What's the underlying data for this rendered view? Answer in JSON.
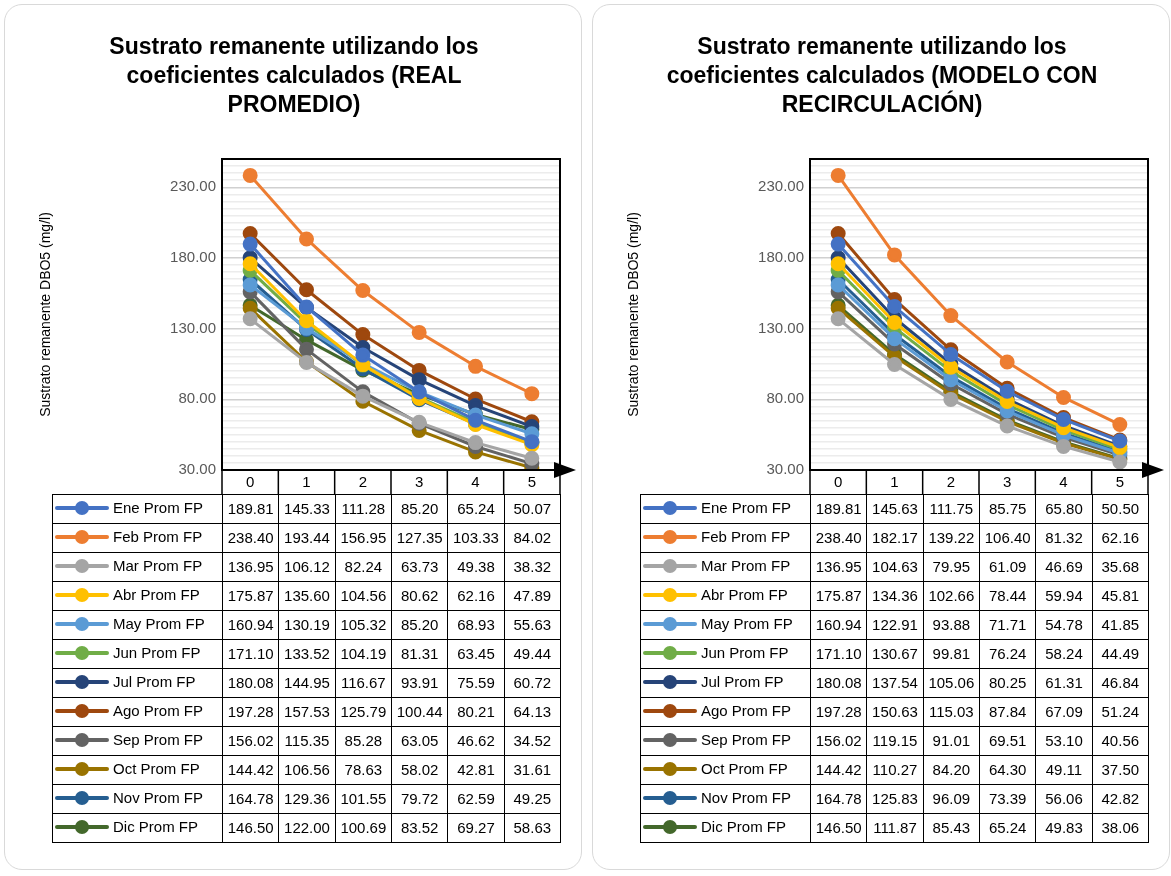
{
  "chart_data": [
    {
      "type": "line",
      "title": "Sustrato remanente utilizando los coeficientes calculados (REAL PROMEDIO)",
      "ylabel": "Sustrato remanente DBO5 (mg/l)",
      "categories": [
        "0",
        "1",
        "2",
        "3",
        "4",
        "5"
      ],
      "ylim": [
        30,
        250
      ],
      "yticks": [
        {
          "value": 30,
          "label": "30.00"
        },
        {
          "value": 35,
          "label": null
        },
        {
          "value": 40,
          "label": null
        },
        {
          "value": 45,
          "label": null
        },
        {
          "value": 50,
          "label": null
        },
        {
          "value": 55,
          "label": null
        },
        {
          "value": 60,
          "label": null
        },
        {
          "value": 65,
          "label": null
        },
        {
          "value": 70,
          "label": null
        },
        {
          "value": 75,
          "label": null
        },
        {
          "value": 80,
          "label": "80.00"
        },
        {
          "value": 85,
          "label": null
        },
        {
          "value": 90,
          "label": null
        },
        {
          "value": 95,
          "label": null
        },
        {
          "value": 100,
          "label": null
        },
        {
          "value": 105,
          "label": null
        },
        {
          "value": 110,
          "label": null
        },
        {
          "value": 115,
          "label": null
        },
        {
          "value": 120,
          "label": null
        },
        {
          "value": 125,
          "label": null
        },
        {
          "value": 130,
          "label": "130.00"
        },
        {
          "value": 135,
          "label": null
        },
        {
          "value": 140,
          "label": null
        },
        {
          "value": 145,
          "label": null
        },
        {
          "value": 150,
          "label": null
        },
        {
          "value": 155,
          "label": null
        },
        {
          "value": 160,
          "label": null
        },
        {
          "value": 165,
          "label": null
        },
        {
          "value": 170,
          "label": null
        },
        {
          "value": 175,
          "label": null
        },
        {
          "value": 180,
          "label": "180.00"
        },
        {
          "value": 185,
          "label": null
        },
        {
          "value": 190,
          "label": null
        },
        {
          "value": 195,
          "label": null
        },
        {
          "value": 200,
          "label": null
        },
        {
          "value": 205,
          "label": null
        },
        {
          "value": 210,
          "label": null
        },
        {
          "value": 215,
          "label": null
        },
        {
          "value": 220,
          "label": null
        },
        {
          "value": 225,
          "label": null
        },
        {
          "value": 230,
          "label": "230.00"
        },
        {
          "value": 235,
          "label": null
        },
        {
          "value": 240,
          "label": null
        },
        {
          "value": 245,
          "label": null
        },
        {
          "value": 250,
          "label": null
        }
      ],
      "grid": "y",
      "legend": "bottom",
      "marker": "circle",
      "series": [
        {
          "name": "Ene Prom FP",
          "color": "#4472c4",
          "values": [
            189.81,
            145.33,
            111.28,
            85.2,
            65.24,
            50.07
          ],
          "value_labels": [
            "189.81",
            "145.33",
            "111.28",
            "85.20",
            "65.24",
            "50.07"
          ]
        },
        {
          "name": "Feb Prom FP",
          "color": "#ed7d31",
          "values": [
            238.4,
            193.44,
            156.95,
            127.35,
            103.33,
            84.02
          ],
          "value_labels": [
            "238.40",
            "193.44",
            "156.95",
            "127.35",
            "103.33",
            "84.02"
          ]
        },
        {
          "name": "Mar Prom FP",
          "color": "#a5a5a5",
          "values": [
            136.95,
            106.12,
            82.24,
            63.73,
            49.38,
            38.32
          ],
          "value_labels": [
            "136.95",
            "106.12",
            "82.24",
            "63.73",
            "49.38",
            "38.32"
          ]
        },
        {
          "name": "Abr Prom FP",
          "color": "#ffc000",
          "values": [
            175.87,
            135.6,
            104.56,
            80.62,
            62.16,
            47.89
          ],
          "value_labels": [
            "175.87",
            "135.60",
            "104.56",
            "80.62",
            "62.16",
            "47.89"
          ]
        },
        {
          "name": "May Prom FP",
          "color": "#5b9bd5",
          "values": [
            160.94,
            130.19,
            105.32,
            85.2,
            68.93,
            55.63
          ],
          "value_labels": [
            "160.94",
            "130.19",
            "105.32",
            "85.20",
            "68.93",
            "55.63"
          ]
        },
        {
          "name": "Jun Prom FP",
          "color": "#70ad47",
          "values": [
            171.1,
            133.52,
            104.19,
            81.31,
            63.45,
            49.44
          ],
          "value_labels": [
            "171.10",
            "133.52",
            "104.19",
            "81.31",
            "63.45",
            "49.44"
          ]
        },
        {
          "name": "Jul Prom FP",
          "color": "#264478",
          "values": [
            180.08,
            144.95,
            116.67,
            93.91,
            75.59,
            60.72
          ],
          "value_labels": [
            "180.08",
            "144.95",
            "116.67",
            "93.91",
            "75.59",
            "60.72"
          ]
        },
        {
          "name": "Ago Prom FP",
          "color": "#9e480e",
          "values": [
            197.28,
            157.53,
            125.79,
            100.44,
            80.21,
            64.13
          ],
          "value_labels": [
            "197.28",
            "157.53",
            "125.79",
            "100.44",
            "80.21",
            "64.13"
          ]
        },
        {
          "name": "Sep Prom FP",
          "color": "#636363",
          "values": [
            156.02,
            115.35,
            85.28,
            63.05,
            46.62,
            34.52
          ],
          "value_labels": [
            "156.02",
            "115.35",
            "85.28",
            "63.05",
            "46.62",
            "34.52"
          ]
        },
        {
          "name": "Oct Prom FP",
          "color": "#997300",
          "values": [
            144.42,
            106.56,
            78.63,
            58.02,
            42.81,
            31.61
          ],
          "value_labels": [
            "144.42",
            "106.56",
            "78.63",
            "58.02",
            "42.81",
            "31.61"
          ]
        },
        {
          "name": "Nov Prom FP",
          "color": "#255e91",
          "values": [
            164.78,
            129.36,
            101.55,
            79.72,
            62.59,
            49.25
          ],
          "value_labels": [
            "164.78",
            "129.36",
            "101.55",
            "79.72",
            "62.59",
            "49.25"
          ]
        },
        {
          "name": "Dic Prom FP",
          "color": "#43682b",
          "values": [
            146.5,
            122.0,
            100.69,
            83.52,
            69.27,
            58.63
          ],
          "value_labels": [
            "146.50",
            "122.00",
            "100.69",
            "83.52",
            "69.27",
            "58.63"
          ]
        }
      ]
    },
    {
      "type": "line",
      "title": "Sustrato remanente utilizando los coeficientes calculados (MODELO CON RECIRCULACIÓN)",
      "ylabel": "Sustrato remanente DBO5 (mg/l)",
      "categories": [
        "0",
        "1",
        "2",
        "3",
        "4",
        "5"
      ],
      "ylim": [
        30,
        250
      ],
      "yticks": [
        {
          "value": 30,
          "label": "30.00"
        },
        {
          "value": 35,
          "label": null
        },
        {
          "value": 40,
          "label": null
        },
        {
          "value": 45,
          "label": null
        },
        {
          "value": 50,
          "label": null
        },
        {
          "value": 55,
          "label": null
        },
        {
          "value": 60,
          "label": null
        },
        {
          "value": 65,
          "label": null
        },
        {
          "value": 70,
          "label": null
        },
        {
          "value": 75,
          "label": null
        },
        {
          "value": 80,
          "label": "80.00"
        },
        {
          "value": 85,
          "label": null
        },
        {
          "value": 90,
          "label": null
        },
        {
          "value": 95,
          "label": null
        },
        {
          "value": 100,
          "label": null
        },
        {
          "value": 105,
          "label": null
        },
        {
          "value": 110,
          "label": null
        },
        {
          "value": 115,
          "label": null
        },
        {
          "value": 120,
          "label": null
        },
        {
          "value": 125,
          "label": null
        },
        {
          "value": 130,
          "label": "130.00"
        },
        {
          "value": 135,
          "label": null
        },
        {
          "value": 140,
          "label": null
        },
        {
          "value": 145,
          "label": null
        },
        {
          "value": 150,
          "label": null
        },
        {
          "value": 155,
          "label": null
        },
        {
          "value": 160,
          "label": null
        },
        {
          "value": 165,
          "label": null
        },
        {
          "value": 170,
          "label": null
        },
        {
          "value": 175,
          "label": null
        },
        {
          "value": 180,
          "label": "180.00"
        },
        {
          "value": 185,
          "label": null
        },
        {
          "value": 190,
          "label": null
        },
        {
          "value": 195,
          "label": null
        },
        {
          "value": 200,
          "label": null
        },
        {
          "value": 205,
          "label": null
        },
        {
          "value": 210,
          "label": null
        },
        {
          "value": 215,
          "label": null
        },
        {
          "value": 220,
          "label": null
        },
        {
          "value": 225,
          "label": null
        },
        {
          "value": 230,
          "label": "230.00"
        },
        {
          "value": 235,
          "label": null
        },
        {
          "value": 240,
          "label": null
        },
        {
          "value": 245,
          "label": null
        },
        {
          "value": 250,
          "label": null
        }
      ],
      "grid": "y",
      "legend": "bottom",
      "marker": "circle",
      "series": [
        {
          "name": "Ene Prom FP",
          "color": "#4472c4",
          "values": [
            189.81,
            145.63,
            111.75,
            85.75,
            65.8,
            50.5
          ],
          "value_labels": [
            "189.81",
            "145.63",
            "111.75",
            "85.75",
            "65.80",
            "50.50"
          ]
        },
        {
          "name": "Feb Prom FP",
          "color": "#ed7d31",
          "values": [
            238.4,
            182.17,
            139.22,
            106.4,
            81.32,
            62.16
          ],
          "value_labels": [
            "238.40",
            "182.17",
            "139.22",
            "106.40",
            "81.32",
            "62.16"
          ]
        },
        {
          "name": "Mar Prom FP",
          "color": "#a5a5a5",
          "values": [
            136.95,
            104.63,
            79.95,
            61.09,
            46.69,
            35.68
          ],
          "value_labels": [
            "136.95",
            "104.63",
            "79.95",
            "61.09",
            "46.69",
            "35.68"
          ]
        },
        {
          "name": "Abr Prom FP",
          "color": "#ffc000",
          "values": [
            175.87,
            134.36,
            102.66,
            78.44,
            59.94,
            45.81
          ],
          "value_labels": [
            "175.87",
            "134.36",
            "102.66",
            "78.44",
            "59.94",
            "45.81"
          ]
        },
        {
          "name": "May Prom FP",
          "color": "#5b9bd5",
          "values": [
            160.94,
            122.91,
            93.88,
            71.71,
            54.78,
            41.85
          ],
          "value_labels": [
            "160.94",
            "122.91",
            "93.88",
            "71.71",
            "54.78",
            "41.85"
          ]
        },
        {
          "name": "Jun Prom FP",
          "color": "#70ad47",
          "values": [
            171.1,
            130.67,
            99.81,
            76.24,
            58.24,
            44.49
          ],
          "value_labels": [
            "171.10",
            "130.67",
            "99.81",
            "76.24",
            "58.24",
            "44.49"
          ]
        },
        {
          "name": "Jul Prom FP",
          "color": "#264478",
          "values": [
            180.08,
            137.54,
            105.06,
            80.25,
            61.31,
            46.84
          ],
          "value_labels": [
            "180.08",
            "137.54",
            "105.06",
            "80.25",
            "61.31",
            "46.84"
          ]
        },
        {
          "name": "Ago Prom FP",
          "color": "#9e480e",
          "values": [
            197.28,
            150.63,
            115.03,
            87.84,
            67.09,
            51.24
          ],
          "value_labels": [
            "197.28",
            "150.63",
            "115.03",
            "87.84",
            "67.09",
            "51.24"
          ]
        },
        {
          "name": "Sep Prom FP",
          "color": "#636363",
          "values": [
            156.02,
            119.15,
            91.01,
            69.51,
            53.1,
            40.56
          ],
          "value_labels": [
            "156.02",
            "119.15",
            "91.01",
            "69.51",
            "53.10",
            "40.56"
          ]
        },
        {
          "name": "Oct Prom FP",
          "color": "#997300",
          "values": [
            144.42,
            110.27,
            84.2,
            64.3,
            49.11,
            37.5
          ],
          "value_labels": [
            "144.42",
            "110.27",
            "84.20",
            "64.30",
            "49.11",
            "37.50"
          ]
        },
        {
          "name": "Nov Prom FP",
          "color": "#255e91",
          "values": [
            164.78,
            125.83,
            96.09,
            73.39,
            56.06,
            42.82
          ],
          "value_labels": [
            "164.78",
            "125.83",
            "96.09",
            "73.39",
            "56.06",
            "42.82"
          ]
        },
        {
          "name": "Dic Prom FP",
          "color": "#43682b",
          "values": [
            146.5,
            111.87,
            85.43,
            65.24,
            49.83,
            38.06
          ],
          "value_labels": [
            "146.50",
            "111.87",
            "85.43",
            "65.24",
            "49.83",
            "38.06"
          ]
        }
      ]
    }
  ]
}
